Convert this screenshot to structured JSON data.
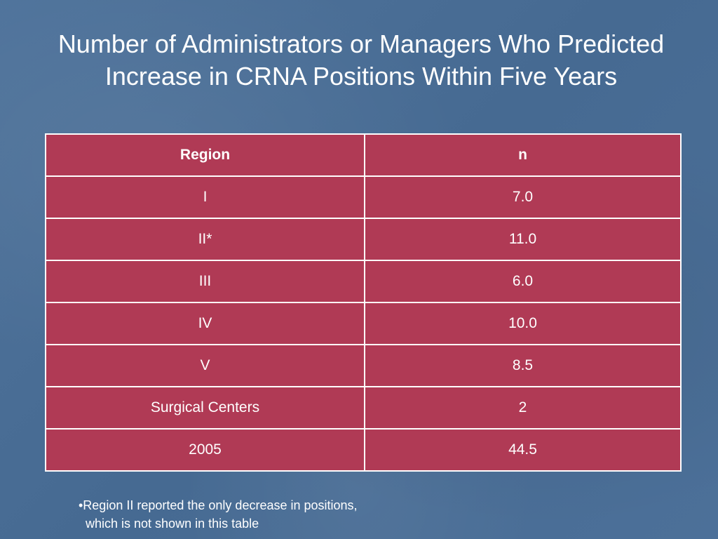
{
  "slide": {
    "title_line1": "Number of Administrators or Managers Who Predicted",
    "title_line2": "Increase in CRNA Positions Within Five Years"
  },
  "table": {
    "headers": [
      "Region",
      "n"
    ],
    "rows": [
      [
        "I",
        "7.0"
      ],
      [
        "II*",
        "11.0"
      ],
      [
        "III",
        "6.0"
      ],
      [
        "IV",
        "10.0"
      ],
      [
        "V",
        "8.5"
      ],
      [
        "Surgical Centers",
        "2"
      ],
      [
        "2005",
        "44.5"
      ]
    ]
  },
  "footnote": {
    "line1": "•Region II reported the only decrease in positions,",
    "line2": "  which is not shown in this table"
  },
  "colors": {
    "background": "#4a6d95",
    "table_fill": "#b03a55",
    "text": "#ffffff"
  }
}
